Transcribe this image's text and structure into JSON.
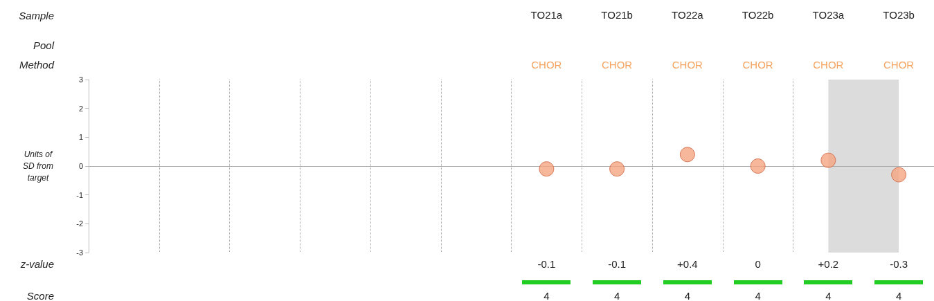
{
  "chart_data": {
    "type": "scatter",
    "xlabel": "Sample",
    "ylabel": "Units of SD from target",
    "categories": [
      null,
      null,
      null,
      null,
      null,
      null,
      "TO21a",
      "TO21b",
      "TO22a",
      "TO22b",
      "TO23a",
      "TO23b"
    ],
    "series": [
      {
        "color": "#f4a582",
        "values": [
          null,
          null,
          null,
          null,
          null,
          null,
          -0.1,
          -0.1,
          0.4,
          0,
          0.2,
          -0.3
        ],
        "value_labels": [
          null,
          null,
          null,
          null,
          null,
          null,
          "-0.1",
          "-0.1",
          "+0.4",
          "0",
          "+0.2",
          "-0.3"
        ]
      }
    ],
    "ylim": [
      -3,
      3
    ],
    "yticks": [
      -3,
      -2,
      -1,
      0,
      1,
      2,
      3
    ],
    "grid": "x",
    "marker": "circle",
    "ref_lines": [
      {
        "axis": "y",
        "value": 0,
        "color": "#aaaaaa"
      }
    ],
    "annotations": [
      "Pool",
      "Method",
      "z-value",
      "Score",
      "CHOR",
      "CHOR",
      "CHOR",
      "CHOR",
      "CHOR",
      "CHOR",
      "4",
      "4",
      "4",
      "4",
      "4",
      "4"
    ],
    "bands": [
      {
        "axis": "x",
        "from": "TO23a",
        "to": "TO23b",
        "color": "#dcdcdc"
      }
    ]
  }
}
